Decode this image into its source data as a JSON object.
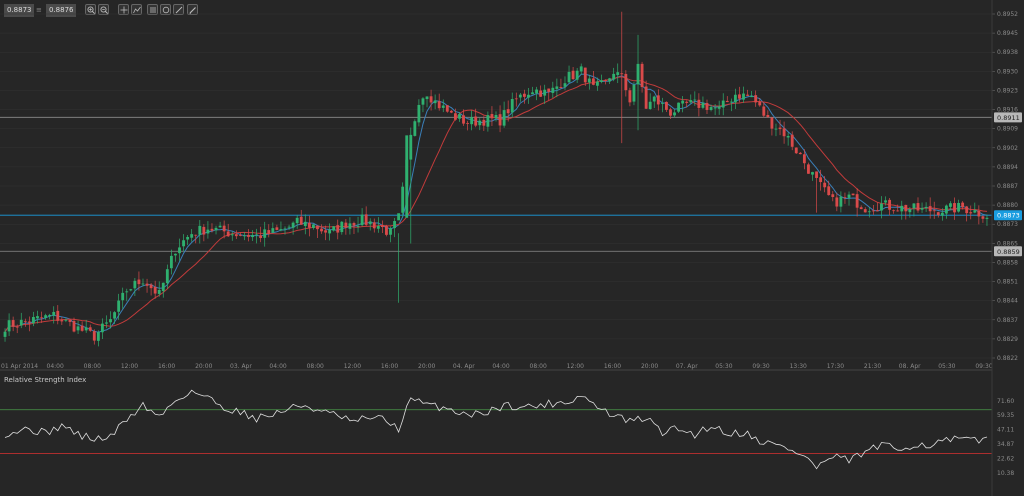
{
  "toolbar": {
    "bid": "0.8873",
    "ask": "0.8876",
    "tools": [
      "zoom-in-icon",
      "zoom-out-icon",
      "crosshair-icon",
      "indicators-icon",
      "objects-icon",
      "draw-icon",
      "line-tool-icon"
    ]
  },
  "colors": {
    "background": "#262626",
    "grid": "#333333",
    "bull": "#2fb06f",
    "bear": "#d94a4a",
    "ma_fast": "#3a7fb8",
    "ma_slow": "#c23b3b",
    "current_price": "#1a9de0",
    "level_line": "#8c8c8c",
    "rsi_line": "#e0e0e0",
    "rsi_upper": "#4a9a4a",
    "rsi_lower": "#c03030"
  },
  "chart_data": [
    {
      "type": "candlestick",
      "ylim": [
        0.8816,
        0.8955
      ],
      "y_ticks": [
        "0.8952",
        "0.8945",
        "0.8938",
        "0.8930",
        "0.8923",
        "0.8916",
        "0.8909",
        "0.8902",
        "0.8894",
        "0.8887",
        "0.8880",
        "0.8873",
        "0.8865",
        "0.8858",
        "0.8851",
        "0.8844",
        "0.8837",
        "0.8829",
        "0.8822"
      ],
      "x_ticks": [
        "01 Apr 2014",
        "04:00",
        "08:00",
        "12:00",
        "16:00",
        "20:00",
        "03. Apr",
        "04:00",
        "08:00",
        "12:00",
        "16:00",
        "20:00",
        "04. Apr",
        "04:00",
        "08:00",
        "12:00",
        "16:00",
        "20:00",
        "07. Apr",
        "05:30",
        "09:30",
        "13:30",
        "17:30",
        "21:30",
        "08. Apr",
        "05:30",
        "09:30"
      ],
      "x_tick_count_total": 27,
      "close_anchors": [
        [
          0,
          0.883
        ],
        [
          6,
          0.8832
        ],
        [
          12,
          0.8834
        ],
        [
          18,
          0.8829
        ],
        [
          22,
          0.8826
        ],
        [
          26,
          0.8832
        ],
        [
          30,
          0.8844
        ],
        [
          34,
          0.8848
        ],
        [
          38,
          0.8842
        ],
        [
          42,
          0.886
        ],
        [
          46,
          0.8866
        ],
        [
          50,
          0.8868
        ],
        [
          56,
          0.8866
        ],
        [
          62,
          0.8865
        ],
        [
          68,
          0.8867
        ],
        [
          72,
          0.887
        ],
        [
          76,
          0.8869
        ],
        [
          80,
          0.8866
        ],
        [
          84,
          0.887
        ],
        [
          88,
          0.8871
        ],
        [
          92,
          0.8869
        ],
        [
          95,
          0.8866
        ],
        [
          97,
          0.8872
        ],
        [
          100,
          0.8903
        ],
        [
          102,
          0.8918
        ],
        [
          104,
          0.8921
        ],
        [
          106,
          0.8917
        ],
        [
          110,
          0.8912
        ],
        [
          114,
          0.8909
        ],
        [
          118,
          0.891
        ],
        [
          122,
          0.891
        ],
        [
          126,
          0.8918
        ],
        [
          130,
          0.8922
        ],
        [
          134,
          0.892
        ],
        [
          138,
          0.8926
        ],
        [
          142,
          0.8929
        ],
        [
          145,
          0.8922
        ],
        [
          148,
          0.8924
        ],
        [
          150,
          0.8929
        ],
        [
          152,
          0.8926
        ],
        [
          154,
          0.8918
        ],
        [
          156,
          0.893
        ],
        [
          158,
          0.8915
        ],
        [
          160,
          0.8918
        ],
        [
          164,
          0.8913
        ],
        [
          168,
          0.8916
        ],
        [
          172,
          0.8916
        ],
        [
          176,
          0.8914
        ],
        [
          180,
          0.892
        ],
        [
          184,
          0.8919
        ],
        [
          188,
          0.891
        ],
        [
          192,
          0.8905
        ],
        [
          196,
          0.8896
        ],
        [
          200,
          0.8886
        ],
        [
          204,
          0.8878
        ],
        [
          208,
          0.888
        ],
        [
          212,
          0.8876
        ],
        [
          216,
          0.8877
        ],
        [
          220,
          0.8876
        ],
        [
          226,
          0.8875
        ],
        [
          230,
          0.8875
        ],
        [
          236,
          0.8876
        ],
        [
          242,
          0.8873
        ]
      ],
      "spikes": [
        [
          152,
          0.8952,
          0.8901
        ],
        [
          156,
          0.8943,
          0.8906
        ],
        [
          97,
          0.8866,
          0.8839
        ],
        [
          200,
          0.889,
          0.8874
        ]
      ],
      "price_levels": [
        {
          "value": 0.8911,
          "label": "0.8911",
          "kind": "horizontal-line"
        },
        {
          "value": 0.8873,
          "label": "0.8873",
          "kind": "current-price"
        },
        {
          "value": 0.8859,
          "label": "0.8859",
          "kind": "horizontal-line"
        }
      ],
      "moving_averages": [
        {
          "period": 5,
          "color": "#3a7fb8"
        },
        {
          "period": 14,
          "color": "#c23b3b"
        }
      ]
    },
    {
      "type": "line",
      "title": "Relative Strength Index",
      "ylim": [
        0,
        100
      ],
      "y_ticks": [
        "71.60",
        "59.35",
        "47.11",
        "34.87",
        "22.62",
        "10.38"
      ],
      "bands": [
        {
          "value": 68,
          "color": "#4a9a4a"
        },
        {
          "value": 31,
          "color": "#c03030"
        }
      ],
      "rsi_anchors": [
        [
          0,
          48
        ],
        [
          6,
          52
        ],
        [
          10,
          48
        ],
        [
          14,
          55
        ],
        [
          18,
          47
        ],
        [
          22,
          43
        ],
        [
          26,
          45
        ],
        [
          30,
          60
        ],
        [
          34,
          72
        ],
        [
          38,
          62
        ],
        [
          42,
          76
        ],
        [
          46,
          84
        ],
        [
          50,
          78
        ],
        [
          54,
          70
        ],
        [
          58,
          66
        ],
        [
          62,
          61
        ],
        [
          66,
          64
        ],
        [
          70,
          69
        ],
        [
          74,
          72
        ],
        [
          78,
          66
        ],
        [
          82,
          63
        ],
        [
          86,
          57
        ],
        [
          90,
          62
        ],
        [
          94,
          59
        ],
        [
          97,
          52
        ],
        [
          100,
          77
        ],
        [
          104,
          72
        ],
        [
          108,
          70
        ],
        [
          112,
          66
        ],
        [
          116,
          64
        ],
        [
          120,
          68
        ],
        [
          124,
          72
        ],
        [
          128,
          70
        ],
        [
          132,
          72
        ],
        [
          136,
          74
        ],
        [
          140,
          76
        ],
        [
          142,
          81
        ],
        [
          146,
          70
        ],
        [
          150,
          63
        ],
        [
          154,
          58
        ],
        [
          158,
          61
        ],
        [
          162,
          49
        ],
        [
          166,
          52
        ],
        [
          170,
          47
        ],
        [
          174,
          55
        ],
        [
          178,
          48
        ],
        [
          182,
          49
        ],
        [
          186,
          42
        ],
        [
          190,
          38
        ],
        [
          194,
          34
        ],
        [
          198,
          26
        ],
        [
          200,
          19
        ],
        [
          204,
          28
        ],
        [
          208,
          25
        ],
        [
          212,
          32
        ],
        [
          216,
          38
        ],
        [
          220,
          34
        ],
        [
          224,
          39
        ],
        [
          228,
          38
        ],
        [
          232,
          42
        ],
        [
          236,
          43
        ],
        [
          240,
          41
        ],
        [
          242,
          45
        ]
      ]
    }
  ]
}
